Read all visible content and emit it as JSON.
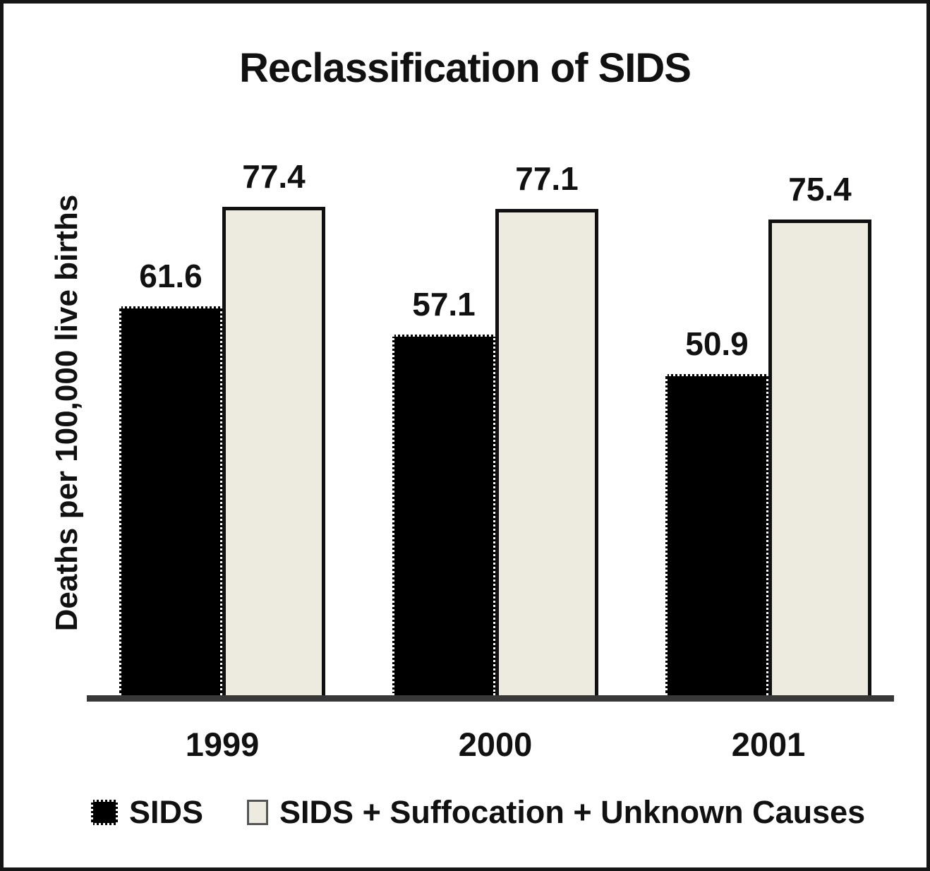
{
  "chart_data": {
    "type": "bar",
    "title": "Reclassification of SIDS",
    "ylabel": "Deaths per 100,000 live births",
    "xlabel": "",
    "categories": [
      "1999",
      "2000",
      "2001"
    ],
    "series": [
      {
        "name": "SIDS",
        "color": "#000000",
        "values": [
          61.6,
          57.1,
          50.9
        ]
      },
      {
        "name": "SIDS + Suffocation + Unknown Causes",
        "color": "#edeae0",
        "values": [
          77.4,
          77.1,
          75.4
        ]
      }
    ],
    "ylim": [
      0,
      85
    ],
    "grid": false,
    "legend_position": "bottom",
    "bar_value_labels": true,
    "value_label_decimals": 1,
    "axis_color": "#383838",
    "frame_border_color": "#161616"
  }
}
